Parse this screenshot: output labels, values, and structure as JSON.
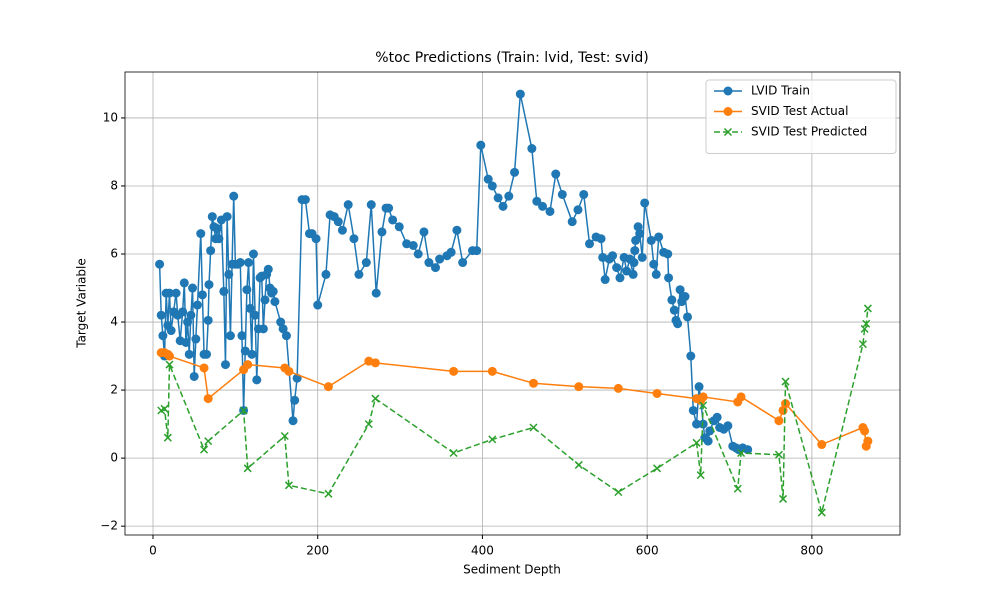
{
  "chart_data": {
    "type": "line",
    "title": "%toc Predictions (Train: lvid, Test: svid)",
    "x_label": "Sediment Depth",
    "y_label": "Target Variable",
    "xlim": [
      -34,
      907
    ],
    "ylim": [
      -2.26,
      11.35
    ],
    "xticks": [
      0,
      200,
      400,
      600,
      800
    ],
    "yticks": [
      {
        "value": -2,
        "label": "−2"
      },
      0,
      2,
      4,
      6,
      8,
      10
    ],
    "grid": true,
    "legend": "upper right",
    "series": [
      {
        "name": "LVID Train",
        "color": "#1f77b4",
        "marker": "circle",
        "dashed": false,
        "x": [
          8,
          10,
          12,
          14,
          16,
          18,
          20,
          22,
          25,
          28,
          30,
          33,
          36,
          38,
          40,
          42,
          44,
          46,
          48,
          50,
          52,
          54,
          58,
          60,
          62,
          65,
          67,
          68,
          70,
          72,
          74,
          76,
          78,
          80,
          83,
          86,
          88,
          90,
          92,
          94,
          96,
          98,
          100,
          103,
          106,
          108,
          110,
          112,
          114,
          116,
          118,
          120,
          122,
          124,
          126,
          128,
          130,
          132,
          134,
          136,
          138,
          140,
          142,
          144,
          146,
          148,
          155,
          158,
          162,
          170,
          172,
          175,
          181,
          185,
          190,
          193,
          198,
          200,
          210,
          215,
          220,
          225,
          230,
          237,
          244,
          250,
          259,
          265,
          271,
          278,
          283,
          286,
          291,
          299,
          308,
          316,
          322,
          329,
          335,
          343,
          348,
          357,
          362,
          369,
          376,
          388,
          393,
          398,
          407,
          412,
          419,
          425,
          432,
          439,
          446,
          460,
          466,
          473,
          482,
          489,
          497,
          509,
          516,
          523,
          530,
          538,
          544,
          546,
          549,
          554,
          558,
          563,
          567,
          572,
          575,
          579,
          583,
          584,
          585,
          586,
          589,
          591,
          594,
          597,
          605,
          608,
          611,
          614,
          620,
          625,
          626,
          630,
          633,
          635,
          637,
          640,
          642,
          646,
          649,
          653,
          656,
          660,
          663,
          665,
          668,
          670,
          674,
          676,
          681,
          685,
          688,
          693,
          698,
          704,
          708,
          711,
          716,
          722
        ],
        "values": [
          5.7,
          4.2,
          3.6,
          3.0,
          4.85,
          3.9,
          4.85,
          3.75,
          4.3,
          4.85,
          4.2,
          3.45,
          4.3,
          5.15,
          3.4,
          4.0,
          3.05,
          4.2,
          5.0,
          2.4,
          3.5,
          4.5,
          6.6,
          4.8,
          3.05,
          3.05,
          4.05,
          5.1,
          6.1,
          7.1,
          6.8,
          6.45,
          6.75,
          6.45,
          7.0,
          4.9,
          2.75,
          7.1,
          5.4,
          3.6,
          5.7,
          7.7,
          5.7,
          5.7,
          5.75,
          3.6,
          1.4,
          3.15,
          4.95,
          5.75,
          4.4,
          3.05,
          6.0,
          4.2,
          2.3,
          3.8,
          5.3,
          5.35,
          3.8,
          4.65,
          5.4,
          5.55,
          5.0,
          4.85,
          4.9,
          4.6,
          4.0,
          3.8,
          3.6,
          1.1,
          1.7,
          2.35,
          7.6,
          7.6,
          6.6,
          6.6,
          6.45,
          4.5,
          5.4,
          7.15,
          7.1,
          6.95,
          6.7,
          7.45,
          6.45,
          5.4,
          5.75,
          7.45,
          4.85,
          6.65,
          7.35,
          7.35,
          7.0,
          6.8,
          6.3,
          6.25,
          6.0,
          6.65,
          5.75,
          5.6,
          5.85,
          5.95,
          6.05,
          6.7,
          5.75,
          6.1,
          6.1,
          9.2,
          8.2,
          8.0,
          7.65,
          7.4,
          7.7,
          8.4,
          10.7,
          9.1,
          7.55,
          7.4,
          7.25,
          8.35,
          7.75,
          6.95,
          7.3,
          7.75,
          6.3,
          6.5,
          6.45,
          5.9,
          5.25,
          5.85,
          5.95,
          5.6,
          5.3,
          5.9,
          5.5,
          5.85,
          5.4,
          5.75,
          6.1,
          6.4,
          6.8,
          6.6,
          5.9,
          7.5,
          6.4,
          5.7,
          5.4,
          6.5,
          6.05,
          6.0,
          5.3,
          4.65,
          4.35,
          4.05,
          3.95,
          4.95,
          4.6,
          4.75,
          4.15,
          3.0,
          1.4,
          1.0,
          2.1,
          1.75,
          1.0,
          0.6,
          0.5,
          0.8,
          1.1,
          1.2,
          0.9,
          0.85,
          0.95,
          0.35,
          0.3,
          0.25,
          0.3,
          0.25
        ]
      },
      {
        "name": "SVID Test Actual",
        "color": "#ff7f0e",
        "marker": "circle",
        "dashed": false,
        "x": [
          10,
          14,
          18,
          20,
          62,
          67,
          110,
          115,
          160,
          165,
          213,
          262,
          270,
          365,
          412,
          462,
          517,
          565,
          612,
          660,
          665,
          668,
          710,
          714,
          760,
          765,
          768,
          812,
          862,
          864,
          866,
          868
        ],
        "values": [
          3.1,
          3.1,
          3.05,
          3.0,
          2.65,
          1.75,
          2.6,
          2.75,
          2.65,
          2.55,
          2.1,
          2.85,
          2.8,
          2.55,
          2.55,
          2.2,
          2.1,
          2.05,
          1.9,
          1.75,
          1.7,
          1.8,
          1.65,
          1.8,
          1.1,
          1.4,
          1.6,
          0.4,
          0.9,
          0.8,
          0.35,
          0.5
        ]
      },
      {
        "name": "SVID Test Predicted",
        "color": "#2ca02c",
        "marker": "x",
        "dashed": true,
        "x": [
          10,
          14,
          18,
          20,
          62,
          67,
          110,
          115,
          160,
          165,
          213,
          262,
          270,
          365,
          412,
          462,
          517,
          565,
          612,
          660,
          665,
          668,
          710,
          714,
          760,
          765,
          768,
          812,
          862,
          864,
          866,
          868
        ],
        "values": [
          1.4,
          1.45,
          0.6,
          2.75,
          0.25,
          0.5,
          1.4,
          -0.3,
          0.65,
          -0.8,
          -1.05,
          1.0,
          1.75,
          0.15,
          0.55,
          0.9,
          -0.2,
          -1.0,
          -0.3,
          0.45,
          -0.5,
          1.55,
          -0.9,
          0.15,
          0.1,
          -1.2,
          2.25,
          -1.6,
          3.35,
          3.8,
          3.95,
          4.4
        ]
      }
    ]
  }
}
